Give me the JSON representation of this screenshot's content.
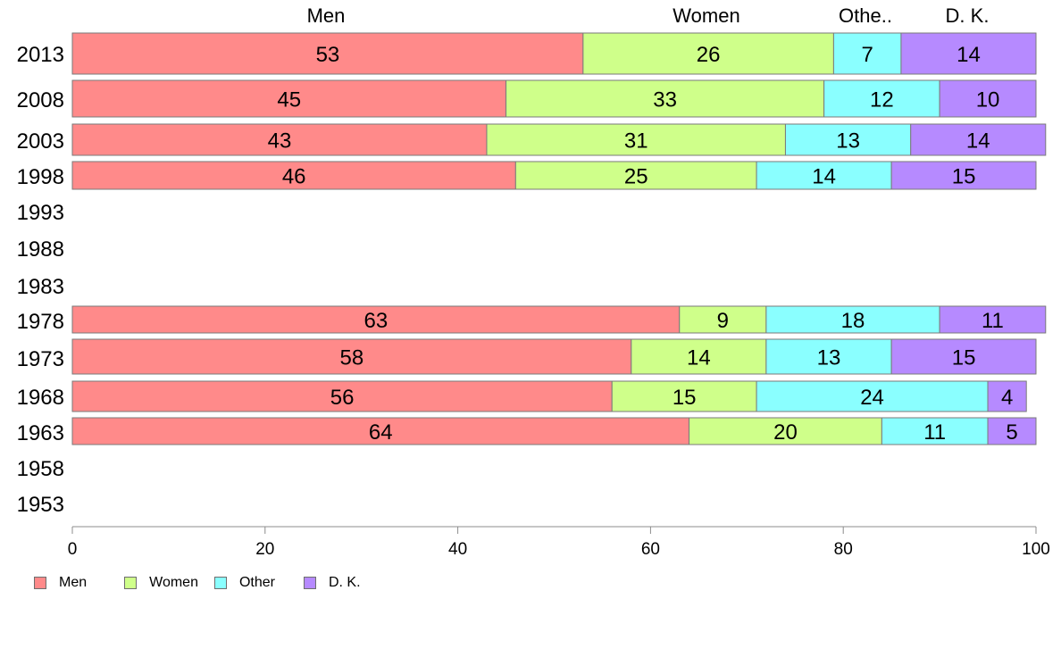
{
  "chart_data": {
    "type": "bar",
    "orientation": "horizontal",
    "stacked": true,
    "categories": [
      "2013",
      "2008",
      "2003",
      "1998",
      "1993",
      "1988",
      "1983",
      "1978",
      "1973",
      "1968",
      "1963",
      "1958",
      "1953"
    ],
    "series": [
      {
        "name": "Men",
        "color": "#ff8a8a",
        "values": [
          53,
          45,
          43,
          46,
          null,
          null,
          null,
          63,
          58,
          56,
          64,
          null,
          null
        ]
      },
      {
        "name": "Women",
        "color": "#cfff8a",
        "values": [
          26,
          33,
          31,
          25,
          null,
          null,
          null,
          9,
          14,
          15,
          20,
          null,
          null
        ]
      },
      {
        "name": "Other",
        "color": "#8affff",
        "values": [
          7,
          12,
          13,
          14,
          null,
          null,
          null,
          18,
          13,
          24,
          11,
          null,
          null
        ]
      },
      {
        "name": "D. K.",
        "color": "#b68aff",
        "values": [
          14,
          10,
          14,
          15,
          null,
          null,
          null,
          11,
          15,
          4,
          5,
          null,
          null
        ]
      }
    ],
    "top_labels": [
      "Men",
      "Women",
      "Othe..",
      "D. K."
    ],
    "xlim": [
      0,
      100
    ],
    "xticks": [
      0,
      20,
      40,
      60,
      80,
      100
    ],
    "grid": false,
    "legend_position": "bottom-left"
  }
}
